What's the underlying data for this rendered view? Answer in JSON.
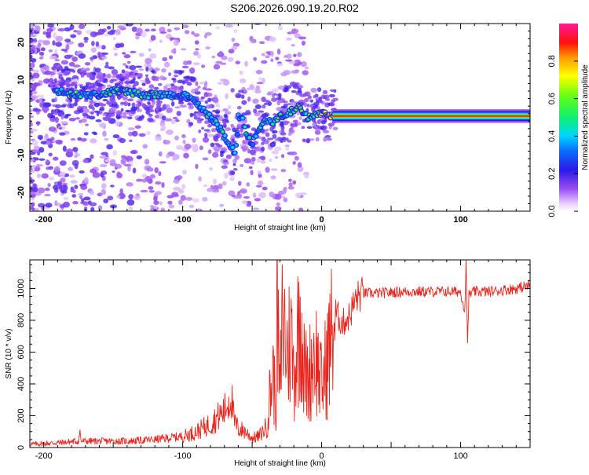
{
  "title": "S206.2026.090.19.20.R02",
  "colors": {
    "snr_line": "#e8241c",
    "ridge": "#ff1a1a",
    "axis": "#000000"
  },
  "chart_data": [
    {
      "type": "heatmap",
      "title": "S206.2026.090.19.20.R02",
      "xlabel": "Height of straight line (km)",
      "ylabel": "Frequency (Hz)",
      "xlim": [
        -210,
        150
      ],
      "ylim": [
        -25,
        25
      ],
      "xticks": [
        {
          "value": -200,
          "label": "-200"
        },
        {
          "value": -100,
          "label": "-100"
        },
        {
          "value": 0,
          "label": "0"
        },
        {
          "value": 100,
          "label": "100"
        }
      ],
      "yticks": [
        {
          "value": 20,
          "label": "20"
        },
        {
          "value": 10,
          "label": "10"
        },
        {
          "value": 0,
          "label": "0"
        },
        {
          "value": -10,
          "label": "-10"
        },
        {
          "value": -20,
          "label": "-20"
        }
      ],
      "colorbar": {
        "label": "Normalized spectral amplitude",
        "range": [
          0,
          1
        ],
        "ticks": [
          {
            "value": 0.0,
            "label": "0.0"
          },
          {
            "value": 0.2,
            "label": "0.2"
          },
          {
            "value": 0.4,
            "label": "0.4"
          },
          {
            "value": 0.6,
            "label": "0.6"
          },
          {
            "value": 0.8,
            "label": "0.8"
          }
        ]
      },
      "ridge_line": {
        "x": [
          -190,
          -180,
          -170,
          -160,
          -150,
          -140,
          -130,
          -120,
          -110,
          -100,
          -95,
          -90,
          -85,
          -80,
          -75,
          -70,
          -65,
          -62,
          -60,
          -58,
          -55,
          -52,
          -50,
          -48,
          -45,
          -40,
          -35,
          -30,
          -25,
          -20,
          -17,
          -14,
          -10,
          -5,
          0,
          5,
          10,
          50,
          100,
          150
        ],
        "y": [
          7,
          6,
          6,
          6,
          7,
          7,
          6,
          6,
          6,
          6,
          5,
          4,
          2,
          0,
          -2,
          -5,
          -8,
          -10,
          0,
          1,
          -3,
          -6,
          -7,
          -5,
          -3,
          -1,
          -1,
          0,
          1,
          2,
          3,
          1,
          0,
          1,
          1,
          0.5,
          0.3,
          0.3,
          0.3,
          0.3
        ],
        "amplitude": [
          0.5,
          0.55,
          0.45,
          0.5,
          0.55,
          0.6,
          0.5,
          0.55,
          0.5,
          0.5,
          0.45,
          0.45,
          0.5,
          0.45,
          0.45,
          0.5,
          0.45,
          0.5,
          0.4,
          0.45,
          0.45,
          0.5,
          0.45,
          0.45,
          0.45,
          0.5,
          0.5,
          0.55,
          0.55,
          0.6,
          0.55,
          0.6,
          0.6,
          0.65,
          0.7,
          0.85,
          0.95,
          1.0,
          1.0,
          1.0
        ]
      }
    },
    {
      "type": "line",
      "xlabel": "Height of straight line (km)",
      "ylabel": "SNR (10 * v/v)",
      "xlim": [
        -210,
        150
      ],
      "ylim": [
        0,
        1180
      ],
      "xticks": [
        {
          "value": -200,
          "label": "-200"
        },
        {
          "value": -100,
          "label": "-100"
        },
        {
          "value": 0,
          "label": "0"
        },
        {
          "value": 100,
          "label": "100"
        }
      ],
      "yticks": [
        {
          "value": 0,
          "label": "0"
        },
        {
          "value": 200,
          "label": "200"
        },
        {
          "value": 400,
          "label": "400"
        },
        {
          "value": 600,
          "label": "600"
        },
        {
          "value": 800,
          "label": "800"
        },
        {
          "value": 1000,
          "label": "1000"
        }
      ],
      "series": [
        {
          "name": "SNR",
          "x": [
            -210,
            -190,
            -175,
            -174,
            -173,
            -160,
            -140,
            -120,
            -100,
            -90,
            -80,
            -70,
            -65,
            -63,
            -60,
            -55,
            -50,
            -45,
            -40,
            -35,
            -33,
            -32,
            -30,
            -28,
            -25,
            -22,
            -20,
            -15,
            -13,
            -10,
            -5,
            0,
            5,
            10,
            15,
            20,
            25,
            30,
            40,
            60,
            80,
            100,
            103,
            104,
            105,
            106,
            110,
            120,
            140,
            150
          ],
          "y": [
            20,
            30,
            40,
            100,
            40,
            40,
            40,
            50,
            70,
            100,
            150,
            230,
            330,
            160,
            120,
            100,
            60,
            70,
            130,
            480,
            250,
            880,
            300,
            850,
            600,
            700,
            450,
            900,
            500,
            420,
            620,
            380,
            600,
            850,
            780,
            830,
            940,
            970,
            970,
            980,
            980,
            980,
            860,
            1180,
            640,
            960,
            980,
            980,
            1000,
            1020
          ]
        }
      ]
    }
  ]
}
